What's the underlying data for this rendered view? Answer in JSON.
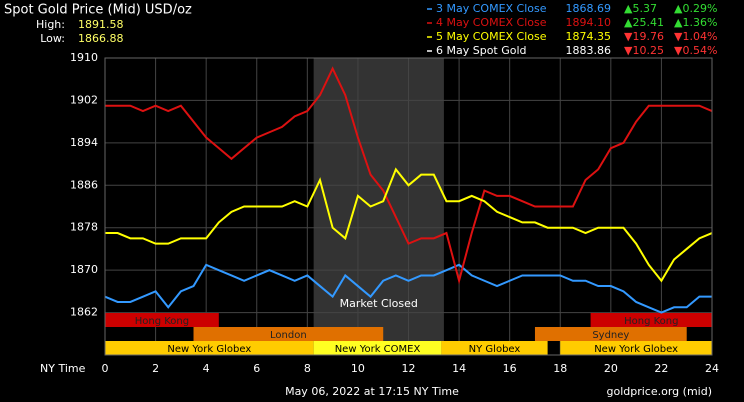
{
  "chart_data": {
    "type": "line",
    "title": "Spot Gold Price (Mid) USD/oz",
    "high_label": "High:",
    "high": "1891.58",
    "low_label": "Low:",
    "low": "1866.88",
    "x_label": "NY Time",
    "footer": "May 06, 2022 at 17:15 NY Time",
    "source": "goldprice.org (mid)",
    "xlim": [
      0,
      24
    ],
    "xticks": [
      0,
      2,
      4,
      6,
      8,
      10,
      12,
      14,
      16,
      18,
      20,
      22,
      24
    ],
    "ylim": [
      1854,
      1910
    ],
    "yticks": [
      1862,
      1870,
      1878,
      1886,
      1894,
      1902,
      1910
    ],
    "grid": true,
    "market_closed": {
      "label": "Market Closed",
      "start": 8.25,
      "end": 13.4
    },
    "x": [
      0,
      0.5,
      1,
      1.5,
      2,
      2.5,
      3,
      3.5,
      4,
      4.5,
      5,
      5.5,
      6,
      6.5,
      7,
      7.5,
      8,
      8.5,
      9,
      9.5,
      10,
      10.5,
      11,
      11.5,
      12,
      12.5,
      13,
      13.5,
      14,
      14.5,
      15,
      15.5,
      16,
      16.5,
      17,
      17.5,
      18,
      18.5,
      19,
      19.5,
      20,
      20.5,
      21,
      21.5,
      22,
      22.5,
      23,
      23.5,
      24
    ],
    "series": [
      {
        "name": "3 May COMEX Close",
        "color": "#3399ff",
        "price": "1868.69",
        "change": "▲5.37",
        "pct": "▲0.29%",
        "change_color": "#33dd33",
        "values": [
          1865,
          1864,
          1864,
          1865,
          1866,
          1863,
          1866,
          1867,
          1871,
          1870,
          1869,
          1868,
          1869,
          1870,
          1869,
          1868,
          1869,
          1867,
          1865,
          1869,
          1867,
          1865,
          1868,
          1869,
          1868,
          1869,
          1869,
          1870,
          1871,
          1869,
          1868,
          1867,
          1868,
          1869,
          1869,
          1869,
          1869,
          1868,
          1868,
          1867,
          1867,
          1866,
          1864,
          1863,
          1862,
          1863,
          1863,
          1865,
          1865
        ]
      },
      {
        "name": "4 May COMEX Close",
        "color": "#dd1111",
        "price": "1894.10",
        "change": "▲25.41",
        "pct": "▲1.36%",
        "change_color": "#33dd33",
        "values": [
          1901,
          1901,
          1901,
          1900,
          1901,
          1900,
          1901,
          1898,
          1895,
          1893,
          1891,
          1893,
          1895,
          1896,
          1897,
          1899,
          1900,
          1903,
          1908,
          1903,
          1895,
          1888,
          1885,
          1880,
          1875,
          1876,
          1876,
          1877,
          1868,
          1877,
          1885,
          1884,
          1884,
          1883,
          1882,
          1882,
          1882,
          1882,
          1887,
          1889,
          1893,
          1894,
          1898,
          1901,
          1901,
          1901,
          1901,
          1901,
          1900
        ]
      },
      {
        "name": "5 May COMEX Close",
        "color": "#ffff00",
        "price": "1874.35",
        "change": "▼19.76",
        "pct": "▼1.04%",
        "change_color": "#ff3333",
        "values": [
          1877,
          1877,
          1876,
          1876,
          1875,
          1875,
          1876,
          1876,
          1876,
          1879,
          1881,
          1882,
          1882,
          1882,
          1882,
          1883,
          1882,
          1887,
          1878,
          1876,
          1884,
          1882,
          1883,
          1889,
          1886,
          1888,
          1888,
          1883,
          1883,
          1884,
          1883,
          1881,
          1880,
          1879,
          1879,
          1878,
          1878,
          1878,
          1877,
          1878,
          1878,
          1878,
          1875,
          1871,
          1868,
          1872,
          1874,
          1876,
          1877
        ]
      }
    ],
    "spot": {
      "name": "6 May Spot Gold",
      "color": "#ffffff",
      "price": "1883.86",
      "change": "▼10.25",
      "pct": "▼0.54%",
      "change_color": "#ff3333"
    },
    "sessions": [
      {
        "label": "Hong Kong",
        "row": 0,
        "start": 0,
        "end": 4.5,
        "color": "#cc0000"
      },
      {
        "label": "Hong Kong",
        "row": 0,
        "start": 19.2,
        "end": 24,
        "color": "#cc0000"
      },
      {
        "label": "London",
        "row": 1,
        "start": 3.5,
        "end": 11,
        "color": "#e07000"
      },
      {
        "label": "Sydney",
        "row": 1,
        "start": 17,
        "end": 23,
        "color": "#e07000"
      },
      {
        "label": "New York Globex",
        "row": 2,
        "start": 0,
        "end": 8.25,
        "color": "#ffcc00"
      },
      {
        "label": "New York COMEX",
        "row": 2,
        "start": 8.25,
        "end": 13.3,
        "color": "#ffff22"
      },
      {
        "label": "NY Globex",
        "row": 2,
        "start": 13.3,
        "end": 17.5,
        "color": "#ffcc00"
      },
      {
        "label": "New York Globex",
        "row": 2,
        "start": 18,
        "end": 24,
        "color": "#ffcc00"
      }
    ]
  }
}
